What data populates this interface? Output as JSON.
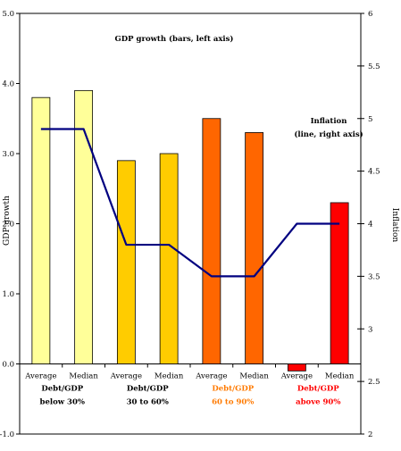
{
  "chart_data": {
    "type": "bar",
    "annotations": {
      "bars": "GDP growth (bars, left axis)",
      "line_1": "Inflation",
      "line_2": "(line, right axis)"
    },
    "ylabel": "GDP growth",
    "y2label": "Inflation",
    "ylim": [
      -1.0,
      5.0
    ],
    "y2lim": [
      2,
      6
    ],
    "yticks": [
      "5.0",
      "4.0",
      "3.0",
      "2.0",
      "1.0",
      "0.0",
      "-1.0"
    ],
    "y2ticks": [
      "6",
      "5.5",
      "5",
      "4.5",
      "4",
      "3.5",
      "3",
      "2.5",
      "2"
    ],
    "categories": [
      "Average",
      "Median",
      "Average",
      "Median",
      "Average",
      "Median",
      "Average",
      "Median"
    ],
    "groups": [
      {
        "line1": "Debt/GDP",
        "line2": "below 30%",
        "color": "#000000"
      },
      {
        "line1": "Debt/GDP",
        "line2": "30 to 60%",
        "color": "#000000"
      },
      {
        "line1": "Debt/GDP",
        "line2": "60 to 90%",
        "color": "#ff7a00"
      },
      {
        "line1": "Debt/GDP",
        "line2": "above 90%",
        "color": "#ff0000"
      }
    ],
    "series": [
      {
        "type": "bar",
        "axis": "left",
        "values": [
          3.8,
          3.9,
          2.9,
          3.0,
          3.5,
          3.3,
          -0.1,
          2.3
        ]
      },
      {
        "type": "line",
        "axis": "right",
        "values": [
          4.9,
          4.9,
          3.8,
          3.8,
          3.5,
          3.5,
          4.0,
          4.0
        ]
      }
    ],
    "bar_colors": [
      "#ffff99",
      "#ffff99",
      "#ffcc00",
      "#ffcc00",
      "#ff6600",
      "#ff6600",
      "#ff0000",
      "#ff0000"
    ],
    "line_color": "#000080"
  }
}
